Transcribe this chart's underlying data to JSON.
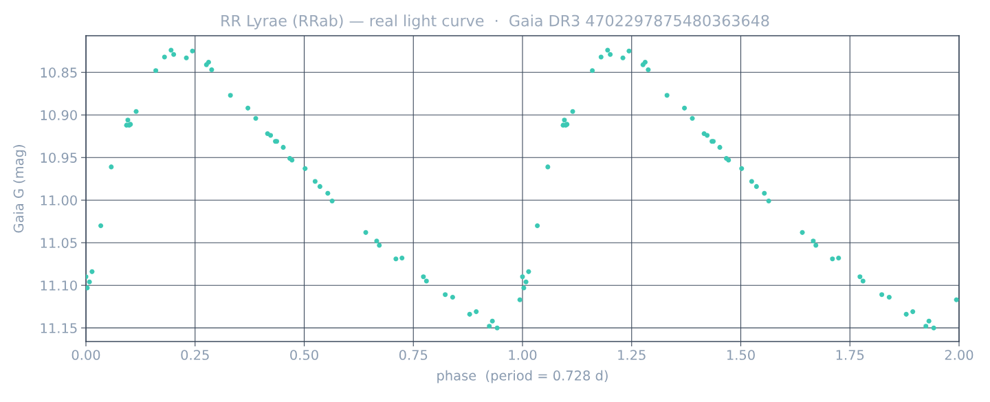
{
  "chart_data": {
    "type": "scatter",
    "title": "RR Lyrae (RRab) — real light curve  ·  Gaia DR3 4702297875480363648",
    "xlabel": "phase  (period = 0.728 d)",
    "ylabel": "Gaia G (mag)",
    "series": [
      {
        "color": "#3cc8b4",
        "x": [
          0.0,
          0.003,
          0.008,
          0.014,
          0.034,
          0.058,
          0.093,
          0.096,
          0.099,
          0.102,
          0.115,
          0.16,
          0.18,
          0.195,
          0.201,
          0.23,
          0.244,
          0.276,
          0.281,
          0.288,
          0.331,
          0.371,
          0.389,
          0.416,
          0.423,
          0.434,
          0.437,
          0.452,
          0.467,
          0.472,
          0.502,
          0.525,
          0.536,
          0.554,
          0.564,
          0.641,
          0.666,
          0.672,
          0.71,
          0.724,
          0.773,
          0.78,
          0.823,
          0.84,
          0.879,
          0.894,
          0.924,
          0.931,
          0.942,
          0.994,
          1.0,
          1.003,
          1.008,
          1.014,
          1.034,
          1.058,
          1.093,
          1.096,
          1.099,
          1.102,
          1.115,
          1.16,
          1.18,
          1.195,
          1.201,
          1.23,
          1.244,
          1.276,
          1.281,
          1.288,
          1.331,
          1.371,
          1.389,
          1.416,
          1.423,
          1.434,
          1.437,
          1.452,
          1.467,
          1.472,
          1.502,
          1.525,
          1.536,
          1.554,
          1.564,
          1.641,
          1.666,
          1.672,
          1.71,
          1.724,
          1.773,
          1.78,
          1.823,
          1.84,
          1.879,
          1.894,
          1.924,
          1.931,
          1.942,
          1.994
        ],
        "values": [
          11.09,
          11.103,
          11.096,
          11.084,
          11.03,
          10.961,
          10.912,
          10.906,
          10.912,
          10.911,
          10.896,
          10.848,
          10.832,
          10.824,
          10.829,
          10.833,
          10.825,
          10.841,
          10.838,
          10.847,
          10.877,
          10.892,
          10.904,
          10.922,
          10.924,
          10.931,
          10.931,
          10.938,
          10.951,
          10.953,
          10.963,
          10.978,
          10.984,
          10.992,
          11.001,
          11.038,
          11.048,
          11.053,
          11.069,
          11.068,
          11.09,
          11.095,
          11.111,
          11.114,
          11.134,
          11.131,
          11.148,
          11.142,
          11.15,
          11.117,
          11.09,
          11.103,
          11.096,
          11.084,
          11.03,
          10.961,
          10.912,
          10.906,
          10.912,
          10.911,
          10.896,
          10.848,
          10.832,
          10.824,
          10.829,
          10.833,
          10.825,
          10.841,
          10.838,
          10.847,
          10.877,
          10.892,
          10.904,
          10.922,
          10.924,
          10.931,
          10.931,
          10.938,
          10.951,
          10.953,
          10.963,
          10.978,
          10.984,
          10.992,
          11.001,
          11.038,
          11.048,
          11.053,
          11.069,
          11.068,
          11.09,
          11.095,
          11.111,
          11.114,
          11.134,
          11.131,
          11.148,
          11.142,
          11.15,
          11.117
        ]
      }
    ],
    "xlim": [
      0,
      2
    ],
    "xticks": [
      {
        "value": 0,
        "label": "0.00"
      },
      {
        "value": 0.25,
        "label": "0.25"
      },
      {
        "value": 0.5,
        "label": "0.50"
      },
      {
        "value": 0.75,
        "label": "0.75"
      },
      {
        "value": 1,
        "label": "1.00"
      },
      {
        "value": 1.25,
        "label": "1.25"
      },
      {
        "value": 1.5,
        "label": "1.50"
      },
      {
        "value": 1.75,
        "label": "1.75"
      },
      {
        "value": 2,
        "label": "2.00"
      }
    ],
    "ylim": [
      11.166,
      10.807
    ],
    "yticks": [
      {
        "value": 10.85,
        "label": "10.85"
      },
      {
        "value": 10.9,
        "label": "10.90"
      },
      {
        "value": 10.95,
        "label": "10.95"
      },
      {
        "value": 11.0,
        "label": "11.00"
      },
      {
        "value": 11.05,
        "label": "11.05"
      },
      {
        "value": 11.1,
        "label": "11.10"
      },
      {
        "value": 11.15,
        "label": "11.15"
      }
    ],
    "grid": true,
    "marker": "circle"
  }
}
